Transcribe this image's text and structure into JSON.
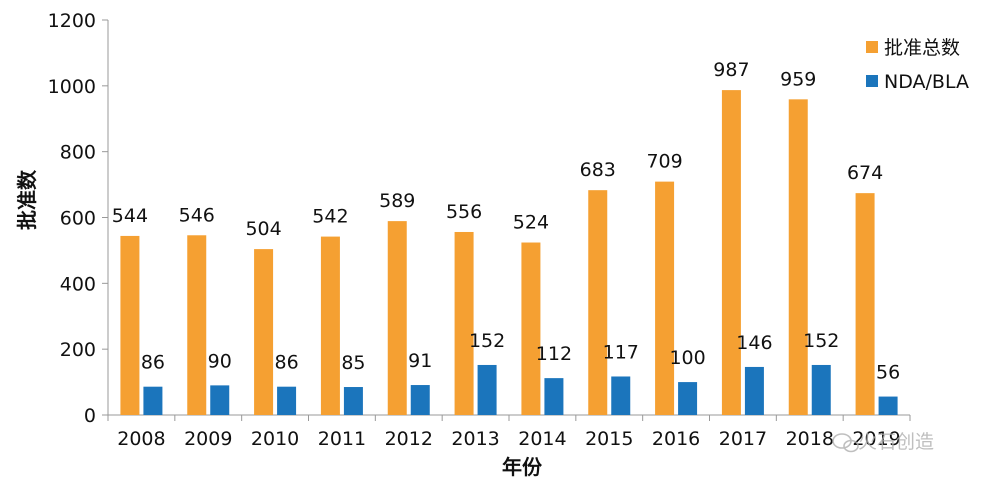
{
  "chart_data": {
    "type": "bar",
    "categories": [
      "2008",
      "2009",
      "2010",
      "2011",
      "2012",
      "2013",
      "2014",
      "2015",
      "2016",
      "2017",
      "2018",
      "2019"
    ],
    "series": [
      {
        "name": "批准总数",
        "color": "#F5A032",
        "values": [
          544,
          546,
          504,
          542,
          589,
          556,
          524,
          683,
          709,
          987,
          959,
          674
        ]
      },
      {
        "name": "NDA/BLA",
        "color": "#1B75BC",
        "values": [
          86,
          90,
          86,
          85,
          91,
          152,
          112,
          117,
          100,
          146,
          152,
          56
        ]
      }
    ],
    "ylabel": "批准数",
    "xlabel": "年份",
    "ylim": [
      0,
      1200
    ],
    "yticks": [
      0,
      200,
      400,
      600,
      800,
      1000,
      1200
    ],
    "legend": "top-right",
    "grid": false
  },
  "watermark": {
    "text": "火石创造",
    "icon": "wechat-icon"
  }
}
